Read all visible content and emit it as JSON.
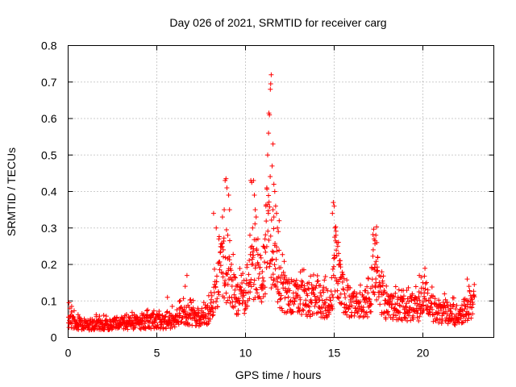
{
  "chart_data": {
    "type": "scatter",
    "title": "Day 026 of 2021, SRMTID for receiver carg",
    "xlabel": "GPS time / hours",
    "ylabel": "SRMTID / TECUs",
    "xlim": [
      0,
      24
    ],
    "ylim": [
      0,
      0.8
    ],
    "xticks": [
      0,
      5,
      10,
      15,
      20
    ],
    "yticks": [
      0,
      0.1,
      0.2,
      0.3,
      0.4,
      0.5,
      0.6,
      0.7,
      0.8
    ],
    "xtick_labels": [
      "0",
      "5",
      "10",
      "15",
      "20"
    ],
    "ytick_labels": [
      "0",
      "0.1",
      "0.2",
      "0.3",
      "0.4",
      "0.5",
      "0.6",
      "0.7",
      "0.8"
    ],
    "grid": true,
    "marker": "+",
    "color": "#ff0000",
    "series": [
      {
        "name": "SRMTID",
        "envelope_x": [
          0,
          0.5,
          1,
          2,
          3,
          4,
          5,
          5.5,
          6,
          6.5,
          7,
          7.5,
          8,
          8.3,
          8.7,
          9,
          9.5,
          10,
          10.3,
          10.6,
          11,
          11.3,
          11.5,
          12,
          12.5,
          13,
          14,
          14.8,
          15.1,
          15.5,
          16,
          16.5,
          17,
          17.3,
          17.6,
          18,
          19,
          19.8,
          20.1,
          20.5,
          21,
          22,
          22.5,
          22.9
        ],
        "envelope_y": [
          0.045,
          0.04,
          0.035,
          0.035,
          0.04,
          0.04,
          0.045,
          0.04,
          0.05,
          0.06,
          0.06,
          0.05,
          0.07,
          0.12,
          0.2,
          0.16,
          0.11,
          0.12,
          0.2,
          0.17,
          0.17,
          0.26,
          0.24,
          0.13,
          0.11,
          0.11,
          0.1,
          0.09,
          0.22,
          0.12,
          0.09,
          0.08,
          0.1,
          0.2,
          0.12,
          0.08,
          0.08,
          0.08,
          0.12,
          0.08,
          0.07,
          0.06,
          0.08,
          0.08
        ],
        "highlights": [
          {
            "x": 0.05,
            "y": 0.095
          },
          {
            "x": 0.1,
            "y": 0.08
          },
          {
            "x": 0.2,
            "y": 0.085
          },
          {
            "x": 5.6,
            "y": 0.11
          },
          {
            "x": 6.6,
            "y": 0.14
          },
          {
            "x": 6.7,
            "y": 0.17
          },
          {
            "x": 8.2,
            "y": 0.34
          },
          {
            "x": 8.35,
            "y": 0.3
          },
          {
            "x": 8.5,
            "y": 0.27
          },
          {
            "x": 8.7,
            "y": 0.33
          },
          {
            "x": 8.8,
            "y": 0.35
          },
          {
            "x": 8.85,
            "y": 0.43
          },
          {
            "x": 8.9,
            "y": 0.435
          },
          {
            "x": 8.95,
            "y": 0.41
          },
          {
            "x": 9.05,
            "y": 0.39
          },
          {
            "x": 9.0,
            "y": 0.28
          },
          {
            "x": 9.1,
            "y": 0.35
          },
          {
            "x": 8.75,
            "y": 0.24
          },
          {
            "x": 10.3,
            "y": 0.43
          },
          {
            "x": 10.35,
            "y": 0.425
          },
          {
            "x": 10.45,
            "y": 0.43
          },
          {
            "x": 10.5,
            "y": 0.39
          },
          {
            "x": 10.55,
            "y": 0.35
          },
          {
            "x": 10.6,
            "y": 0.33
          },
          {
            "x": 10.4,
            "y": 0.3
          },
          {
            "x": 10.7,
            "y": 0.27
          },
          {
            "x": 10.25,
            "y": 0.28
          },
          {
            "x": 11.0,
            "y": 0.25
          },
          {
            "x": 11.1,
            "y": 0.27
          },
          {
            "x": 11.15,
            "y": 0.36
          },
          {
            "x": 11.2,
            "y": 0.41
          },
          {
            "x": 11.25,
            "y": 0.5
          },
          {
            "x": 11.3,
            "y": 0.56
          },
          {
            "x": 11.32,
            "y": 0.615
          },
          {
            "x": 11.35,
            "y": 0.61
          },
          {
            "x": 11.4,
            "y": 0.68
          },
          {
            "x": 11.42,
            "y": 0.695
          },
          {
            "x": 11.45,
            "y": 0.72
          },
          {
            "x": 11.5,
            "y": 0.47
          },
          {
            "x": 11.55,
            "y": 0.53
          },
          {
            "x": 11.6,
            "y": 0.42
          },
          {
            "x": 11.65,
            "y": 0.4
          },
          {
            "x": 11.7,
            "y": 0.36
          },
          {
            "x": 11.75,
            "y": 0.34
          },
          {
            "x": 11.8,
            "y": 0.3
          },
          {
            "x": 11.85,
            "y": 0.29
          },
          {
            "x": 11.9,
            "y": 0.32
          },
          {
            "x": 11.55,
            "y": 0.35
          },
          {
            "x": 11.6,
            "y": 0.33
          },
          {
            "x": 14.9,
            "y": 0.34
          },
          {
            "x": 14.95,
            "y": 0.37
          },
          {
            "x": 15.0,
            "y": 0.36
          },
          {
            "x": 15.05,
            "y": 0.3
          },
          {
            "x": 15.1,
            "y": 0.28
          },
          {
            "x": 15.15,
            "y": 0.26
          },
          {
            "x": 15.2,
            "y": 0.25
          },
          {
            "x": 15.25,
            "y": 0.23
          },
          {
            "x": 15.3,
            "y": 0.21
          },
          {
            "x": 15.35,
            "y": 0.2
          },
          {
            "x": 17.2,
            "y": 0.24
          },
          {
            "x": 17.25,
            "y": 0.27
          },
          {
            "x": 17.3,
            "y": 0.265
          },
          {
            "x": 17.35,
            "y": 0.28
          },
          {
            "x": 17.4,
            "y": 0.26
          },
          {
            "x": 17.45,
            "y": 0.22
          },
          {
            "x": 17.3,
            "y": 0.2
          },
          {
            "x": 17.4,
            "y": 0.18
          },
          {
            "x": 19.8,
            "y": 0.17
          },
          {
            "x": 19.9,
            "y": 0.165
          },
          {
            "x": 20.0,
            "y": 0.15
          },
          {
            "x": 22.5,
            "y": 0.16
          },
          {
            "x": 22.6,
            "y": 0.14
          },
          {
            "x": 22.9,
            "y": 0.145
          }
        ]
      }
    ]
  }
}
